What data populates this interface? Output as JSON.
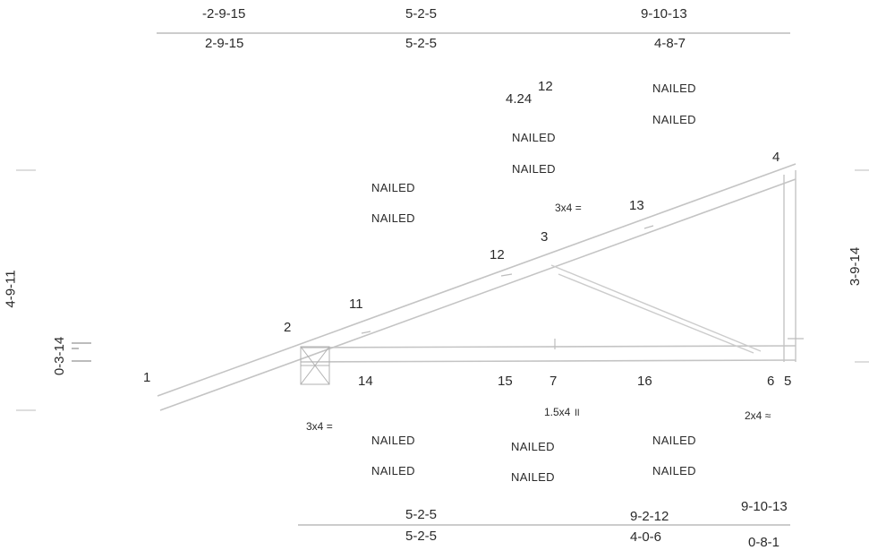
{
  "top_dims": {
    "upper": [
      "-2-9-15",
      "5-2-5",
      "9-10-13"
    ],
    "lower": [
      "2-9-15",
      "5-2-5",
      "4-8-7"
    ]
  },
  "bottom_dims": {
    "upper": [
      "5-2-5",
      "9-2-12",
      "9-10-13"
    ],
    "lower": [
      "5-2-5",
      "4-0-6",
      "0-8-1"
    ]
  },
  "vertical_dims": {
    "left_height": "4-9-11",
    "left_heel": "0-3-14",
    "right_height": "3-9-14"
  },
  "pitch": {
    "rise": "4.24",
    "run": "12"
  },
  "joints": [
    "1",
    "2",
    "3",
    "4",
    "5",
    "6",
    "7",
    "11",
    "12",
    "13",
    "14",
    "15",
    "16"
  ],
  "plates": {
    "joint3": "3x4",
    "joint2": "3x4",
    "joint7": "1.5x4",
    "joint6": "2x4"
  },
  "nail_label": "NAILED"
}
